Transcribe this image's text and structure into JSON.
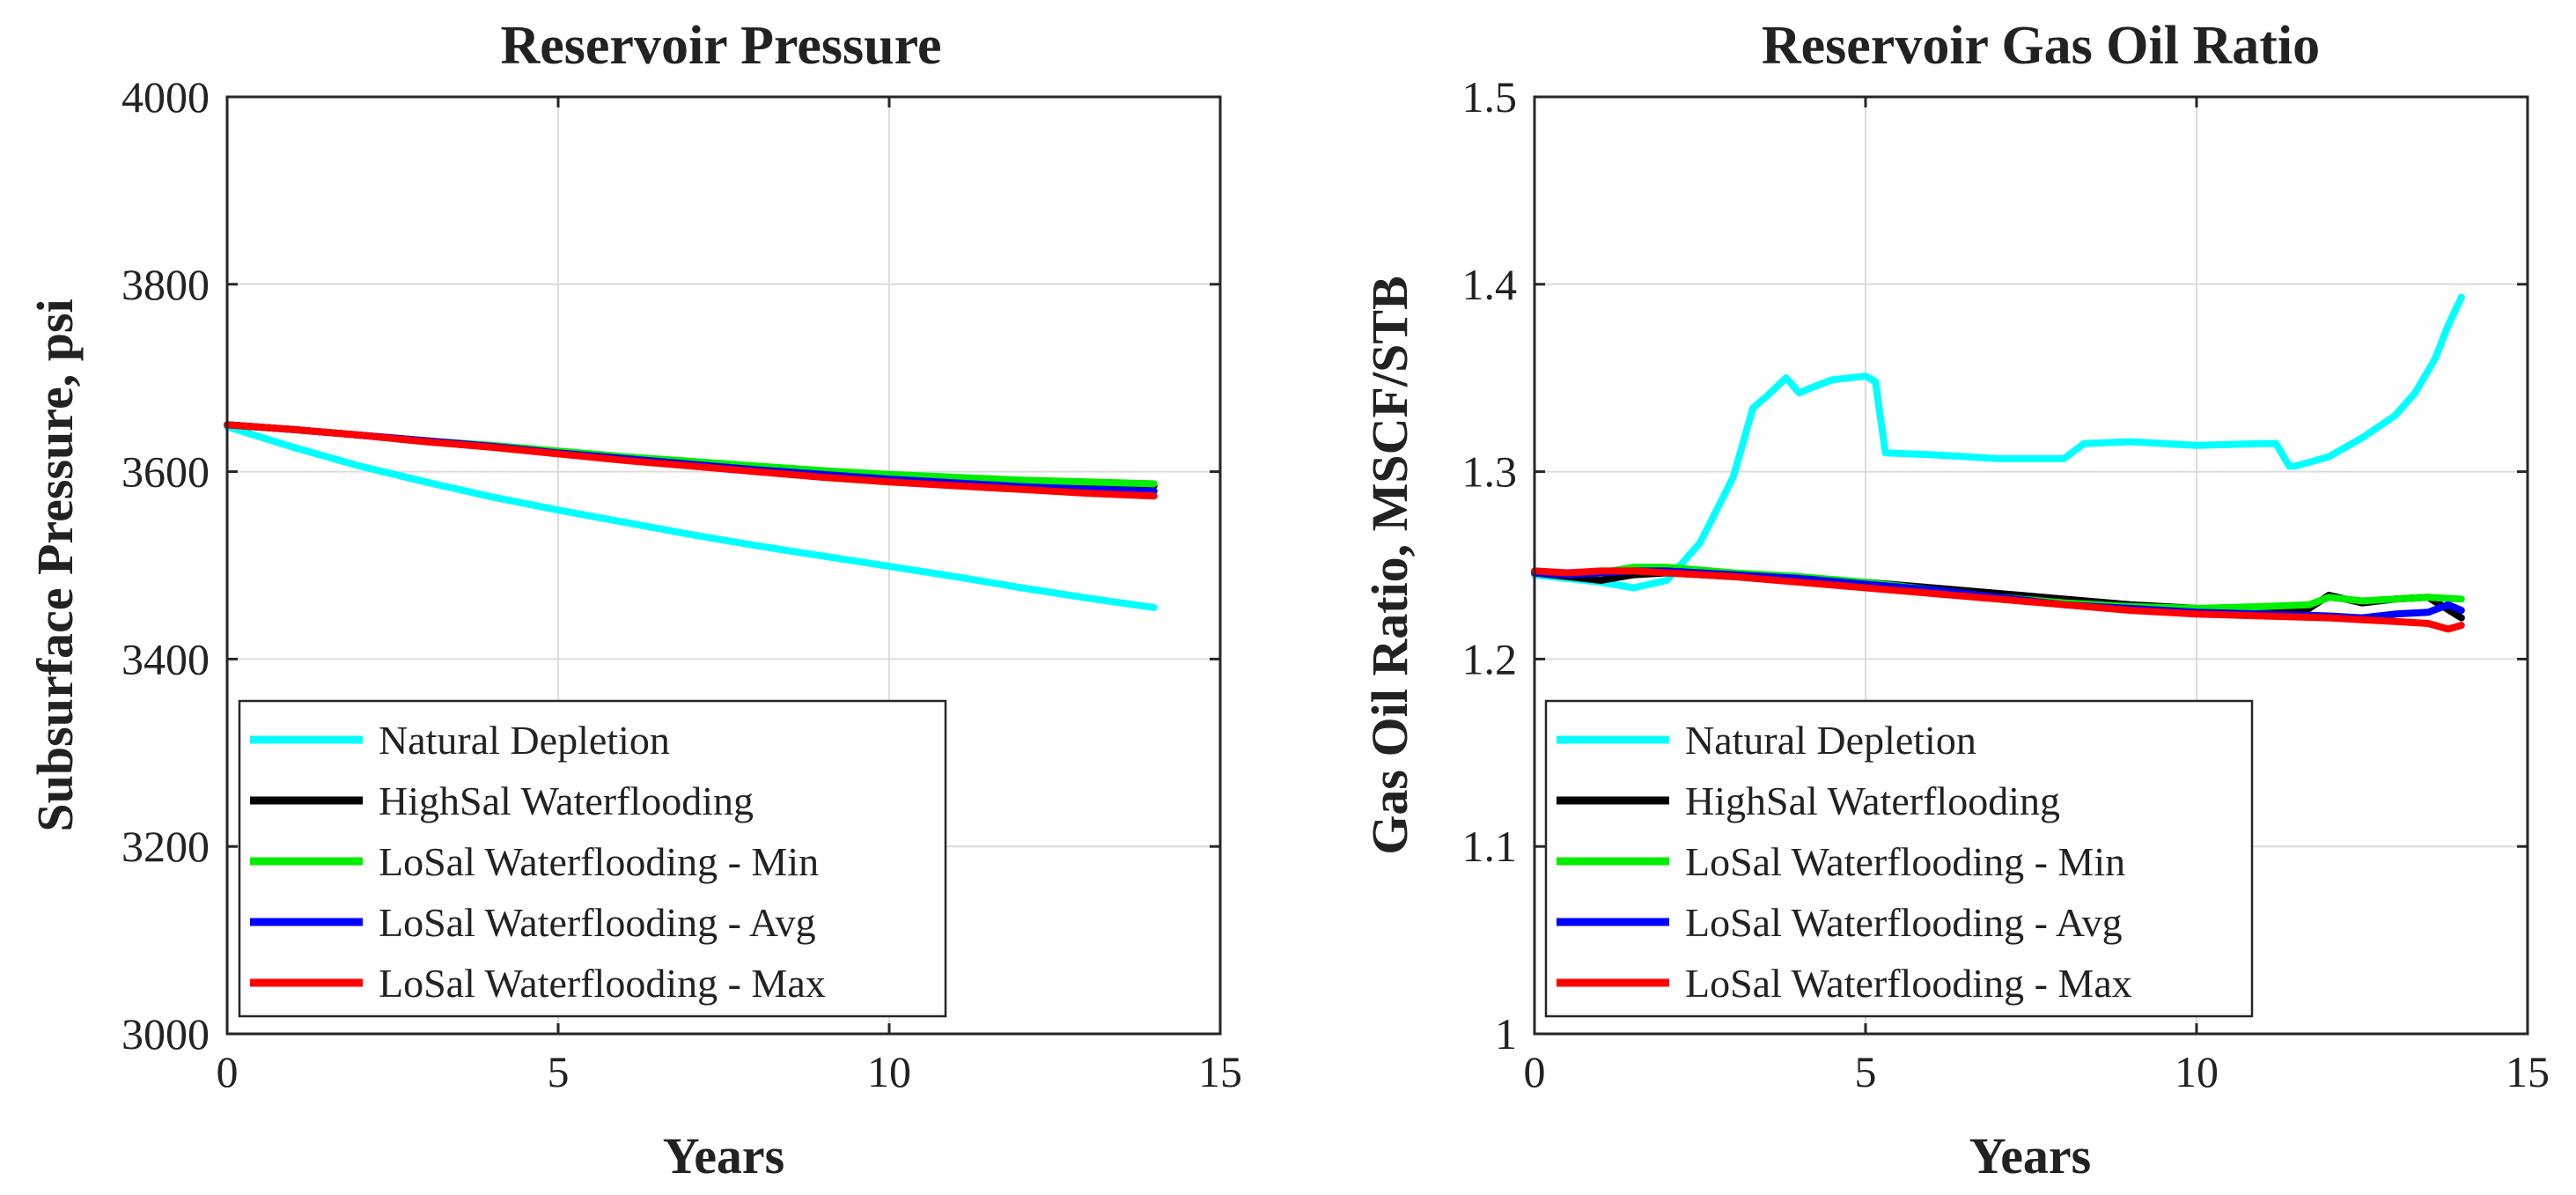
{
  "chart_data": [
    {
      "type": "line",
      "title": "Reservoir Pressure",
      "xlabel": "Years",
      "ylabel": "Subsurface Pressure, psi",
      "xlim": [
        0,
        15
      ],
      "ylim": [
        3000,
        4000
      ],
      "xticks": [
        0,
        5,
        10,
        15
      ],
      "yticks": [
        3000,
        3200,
        3400,
        3600,
        3800,
        4000
      ],
      "xtick_labels": [
        "0",
        "5",
        "10",
        "15"
      ],
      "ytick_labels": [
        "3000",
        "3200",
        "3400",
        "3600",
        "3800",
        "4000"
      ],
      "grid": true,
      "legend_position": "bottom-left",
      "series": [
        {
          "name": "Natural Depletion",
          "color": "#00ffff",
          "x": [
            0,
            1,
            2,
            3,
            4,
            5,
            6,
            7,
            8,
            9,
            10,
            11,
            12,
            13,
            14
          ],
          "y": [
            3648,
            3626,
            3606,
            3589,
            3573,
            3559,
            3546,
            3533,
            3521,
            3510,
            3499,
            3488,
            3476,
            3465,
            3455
          ]
        },
        {
          "name": "HighSal Waterflooding",
          "color": "#000000",
          "x": [
            0,
            1,
            2,
            3,
            4,
            5,
            6,
            7,
            8,
            9,
            10,
            11,
            12,
            13,
            14
          ],
          "y": [
            3650,
            3645,
            3639,
            3633,
            3627,
            3621,
            3615,
            3609,
            3604,
            3599,
            3595,
            3592,
            3589,
            3587,
            3585
          ]
        },
        {
          "name": "LoSal Waterflooding - Min",
          "color": "#00ee00",
          "x": [
            0,
            1,
            2,
            3,
            4,
            5,
            6,
            7,
            8,
            9,
            10,
            11,
            12,
            13,
            14
          ],
          "y": [
            3650,
            3645,
            3639,
            3633,
            3628,
            3622,
            3616,
            3611,
            3606,
            3601,
            3597,
            3594,
            3591,
            3589,
            3587
          ]
        },
        {
          "name": "LoSal Waterflooding - Avg",
          "color": "#0000ff",
          "x": [
            0,
            1,
            2,
            3,
            4,
            5,
            6,
            7,
            8,
            9,
            10,
            11,
            12,
            13,
            14
          ],
          "y": [
            3650,
            3645,
            3639,
            3633,
            3627,
            3620,
            3614,
            3608,
            3602,
            3597,
            3592,
            3588,
            3584,
            3581,
            3579
          ]
        },
        {
          "name": "LoSal Waterflooding - Max",
          "color": "#ff0000",
          "x": [
            0,
            1,
            2,
            3,
            4,
            5,
            6,
            7,
            8,
            9,
            10,
            11,
            12,
            13,
            14
          ],
          "y": [
            3650,
            3645,
            3639,
            3632,
            3626,
            3619,
            3612,
            3606,
            3600,
            3594,
            3589,
            3585,
            3581,
            3577,
            3574
          ]
        }
      ]
    },
    {
      "type": "line",
      "title": "Reservoir Gas Oil Ratio",
      "xlabel": "Years",
      "ylabel": "Gas Oil Ratio, MSCF/STB",
      "xlim": [
        0,
        15
      ],
      "ylim": [
        1,
        1.5
      ],
      "xticks": [
        0,
        5,
        10,
        15
      ],
      "yticks": [
        1,
        1.1,
        1.2,
        1.3,
        1.4,
        1.5
      ],
      "xtick_labels": [
        "0",
        "5",
        "10",
        "15"
      ],
      "ytick_labels": [
        "1",
        "1.1",
        "1.2",
        "1.3",
        "1.4",
        "1.5"
      ],
      "grid": true,
      "legend_position": "bottom-left",
      "series": [
        {
          "name": "Natural Depletion",
          "color": "#00ffff",
          "x": [
            0,
            0.5,
            1,
            1.5,
            2,
            2.5,
            3,
            3.3,
            3.5,
            3.8,
            4,
            4.2,
            4.5,
            5,
            5.15,
            5.3,
            6,
            7,
            7.5,
            8,
            8.3,
            9,
            10,
            11,
            11.2,
            11.4,
            11.5,
            12,
            12.5,
            13,
            13.3,
            13.6,
            13.8,
            14
          ],
          "y": [
            1.245,
            1.243,
            1.241,
            1.238,
            1.242,
            1.262,
            1.297,
            1.334,
            1.34,
            1.35,
            1.342,
            1.345,
            1.349,
            1.351,
            1.348,
            1.31,
            1.309,
            1.307,
            1.307,
            1.307,
            1.315,
            1.316,
            1.314,
            1.315,
            1.315,
            1.303,
            1.303,
            1.308,
            1.318,
            1.33,
            1.342,
            1.36,
            1.378,
            1.393
          ]
        },
        {
          "name": "HighSal Waterflooding",
          "color": "#000000",
          "x": [
            0,
            0.5,
            1,
            1.5,
            2,
            3,
            4,
            5,
            6,
            7,
            8,
            9,
            10,
            11,
            11.7,
            12,
            12.5,
            13,
            13.5,
            14
          ],
          "y": [
            1.246,
            1.244,
            1.242,
            1.245,
            1.246,
            1.244,
            1.243,
            1.241,
            1.238,
            1.235,
            1.232,
            1.229,
            1.227,
            1.226,
            1.227,
            1.234,
            1.23,
            1.232,
            1.233,
            1.222
          ]
        },
        {
          "name": "LoSal Waterflooding - Min",
          "color": "#00ee00",
          "x": [
            0,
            0.5,
            1,
            1.5,
            2,
            3,
            4,
            5,
            6,
            7,
            8,
            9,
            10,
            11,
            11.7,
            12,
            12.5,
            13,
            13.5,
            14
          ],
          "y": [
            1.246,
            1.245,
            1.246,
            1.249,
            1.249,
            1.246,
            1.244,
            1.241,
            1.237,
            1.233,
            1.23,
            1.228,
            1.227,
            1.228,
            1.229,
            1.233,
            1.231,
            1.232,
            1.233,
            1.232
          ]
        },
        {
          "name": "LoSal Waterflooding - Avg",
          "color": "#0000ff",
          "x": [
            0,
            0.5,
            1,
            1.5,
            2,
            3,
            4,
            5,
            6,
            7,
            8,
            9,
            10,
            11,
            12,
            12.5,
            13,
            13.5,
            13.8,
            14
          ],
          "y": [
            1.246,
            1.245,
            1.246,
            1.247,
            1.247,
            1.245,
            1.243,
            1.24,
            1.237,
            1.233,
            1.229,
            1.227,
            1.225,
            1.224,
            1.223,
            1.222,
            1.224,
            1.225,
            1.229,
            1.226
          ]
        },
        {
          "name": "LoSal Waterflooding - Max",
          "color": "#ff0000",
          "x": [
            0,
            0.5,
            1,
            1.5,
            2,
            3,
            4,
            5,
            6,
            7,
            8,
            9,
            10,
            11,
            12,
            12.5,
            13,
            13.5,
            13.8,
            14
          ],
          "y": [
            1.247,
            1.246,
            1.247,
            1.247,
            1.246,
            1.244,
            1.241,
            1.238,
            1.235,
            1.232,
            1.229,
            1.226,
            1.224,
            1.223,
            1.222,
            1.221,
            1.22,
            1.219,
            1.216,
            1.218
          ]
        }
      ]
    }
  ]
}
